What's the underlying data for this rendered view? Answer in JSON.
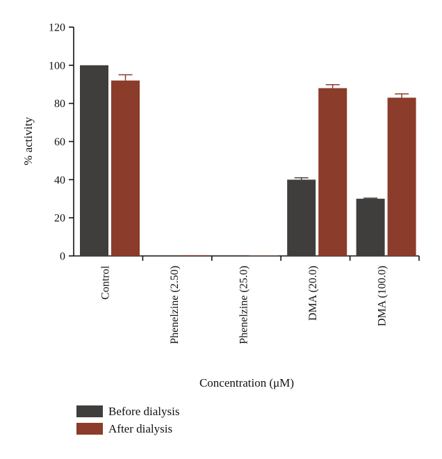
{
  "chart_data": {
    "type": "bar",
    "title": "",
    "xlabel": "Concentration (μM)",
    "ylabel": "% activity",
    "ylim": [
      0,
      120
    ],
    "yticks": [
      0,
      20,
      40,
      60,
      80,
      100,
      120
    ],
    "categories": [
      "Control",
      "Phenelzine (2.50)",
      "Phenelzine (25.0)",
      "DMA (20.0)",
      "DMA (100.0)"
    ],
    "series": [
      {
        "name": "Before dialysis",
        "color": "#3f3e3c",
        "values": [
          100,
          0,
          0,
          40,
          30
        ],
        "errors": [
          0,
          0,
          0,
          1,
          0.3
        ]
      },
      {
        "name": "After dialysis",
        "color": "#8b3c2a",
        "values": [
          92,
          0.4,
          0.2,
          88,
          83
        ],
        "errors": [
          3,
          0.1,
          0.05,
          1.8,
          2
        ]
      }
    ],
    "grid": false,
    "legend_position": "bottom-left"
  }
}
